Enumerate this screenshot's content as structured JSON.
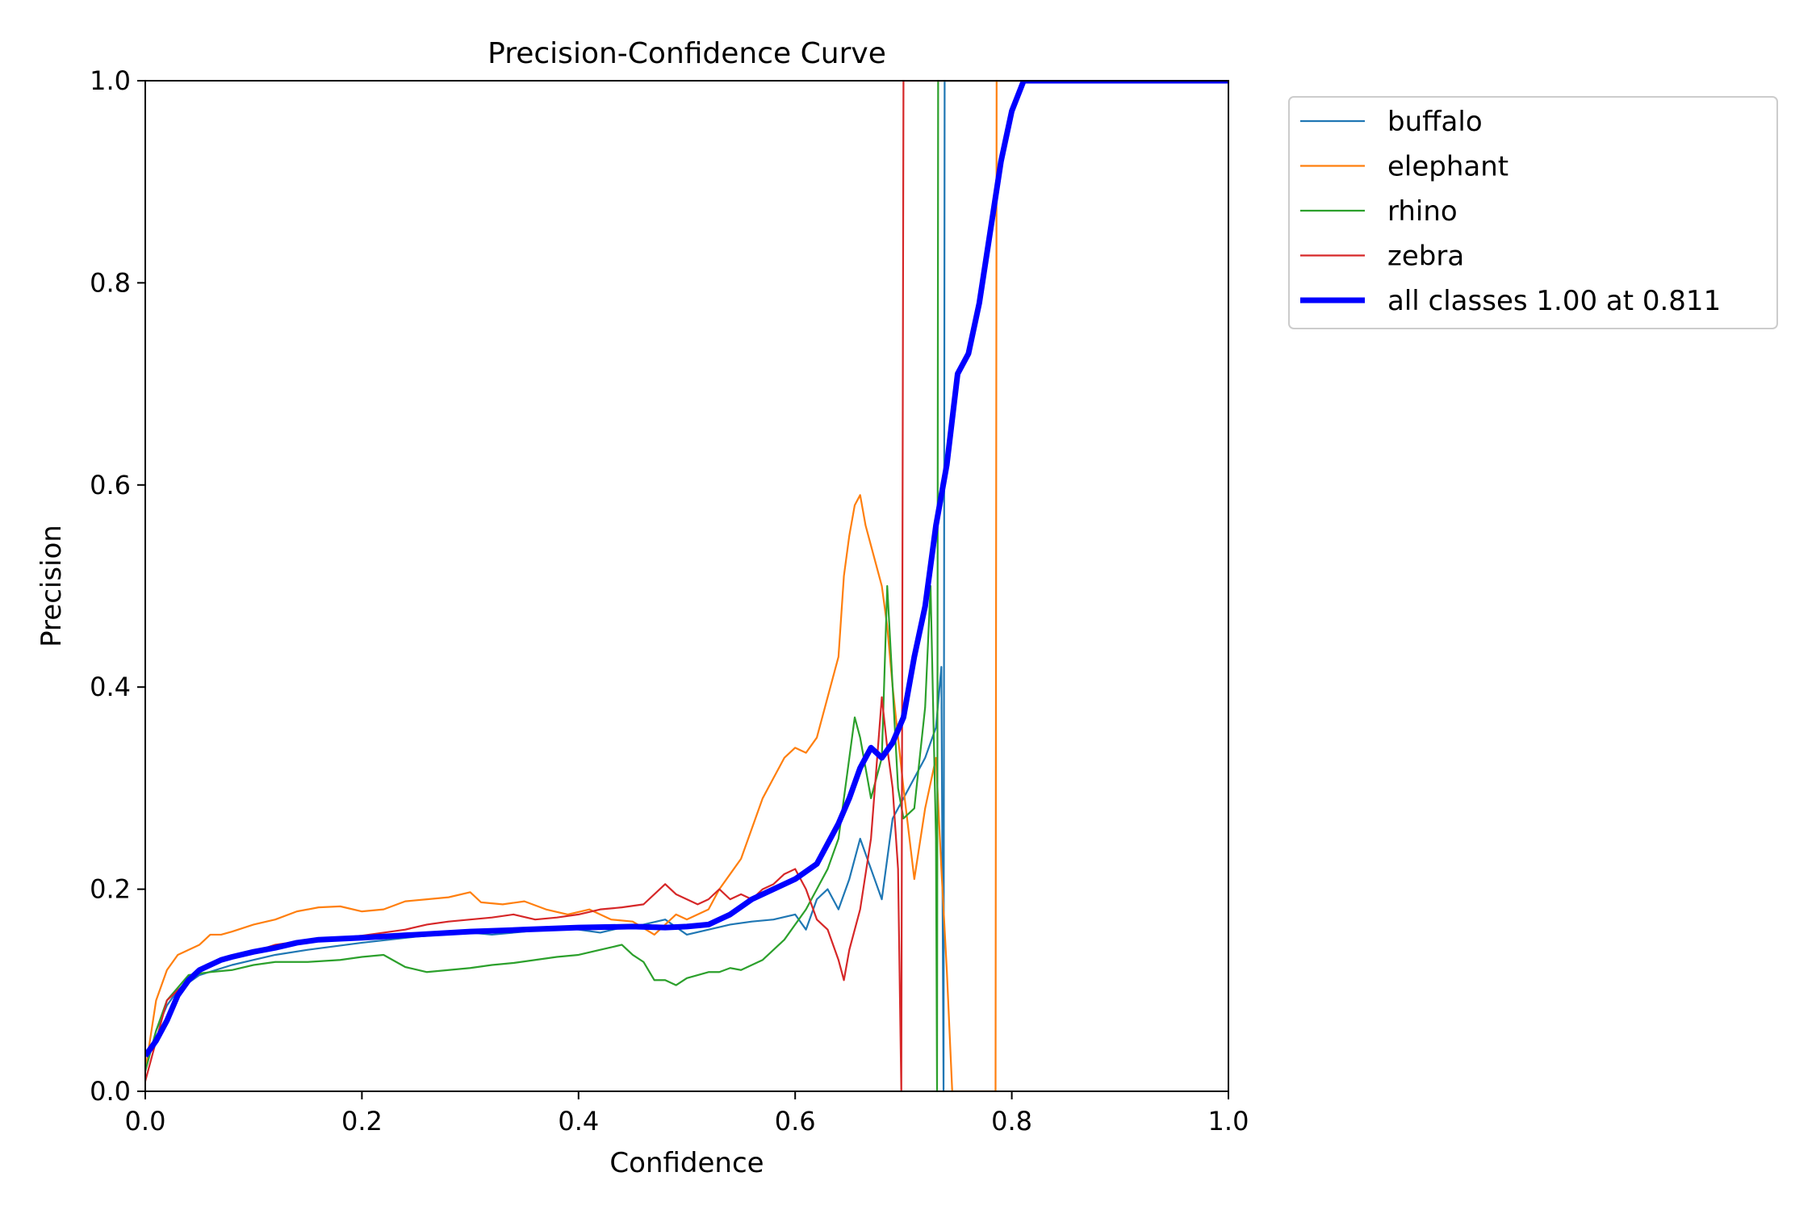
{
  "chart_data": {
    "type": "line",
    "title": "Precision-Confidence Curve",
    "xlabel": "Confidence",
    "ylabel": "Precision",
    "xlim": [
      0.0,
      1.0
    ],
    "ylim": [
      0.0,
      1.0
    ],
    "xticks": [
      0.0,
      0.2,
      0.4,
      0.6,
      0.8,
      1.0
    ],
    "yticks": [
      0.0,
      0.2,
      0.4,
      0.6,
      0.8,
      1.0
    ],
    "xtick_labels": [
      "0.0",
      "0.2",
      "0.4",
      "0.6",
      "0.8",
      "1.0"
    ],
    "ytick_labels": [
      "0.0",
      "0.2",
      "0.4",
      "0.6",
      "0.8",
      "1.0"
    ],
    "grid": false,
    "legend_placement": "outside upper-right",
    "series": [
      {
        "name": "buffalo",
        "color": "#1f77b4",
        "width": "thin",
        "points": [
          [
            0.0,
            0.02
          ],
          [
            0.01,
            0.06
          ],
          [
            0.02,
            0.085
          ],
          [
            0.03,
            0.1
          ],
          [
            0.05,
            0.115
          ],
          [
            0.08,
            0.125
          ],
          [
            0.1,
            0.13
          ],
          [
            0.12,
            0.135
          ],
          [
            0.15,
            0.14
          ],
          [
            0.2,
            0.147
          ],
          [
            0.25,
            0.153
          ],
          [
            0.3,
            0.157
          ],
          [
            0.32,
            0.155
          ],
          [
            0.35,
            0.158
          ],
          [
            0.38,
            0.162
          ],
          [
            0.4,
            0.16
          ],
          [
            0.42,
            0.157
          ],
          [
            0.44,
            0.162
          ],
          [
            0.46,
            0.165
          ],
          [
            0.48,
            0.17
          ],
          [
            0.5,
            0.155
          ],
          [
            0.52,
            0.16
          ],
          [
            0.54,
            0.165
          ],
          [
            0.56,
            0.168
          ],
          [
            0.58,
            0.17
          ],
          [
            0.6,
            0.175
          ],
          [
            0.61,
            0.16
          ],
          [
            0.62,
            0.19
          ],
          [
            0.63,
            0.2
          ],
          [
            0.64,
            0.18
          ],
          [
            0.65,
            0.21
          ],
          [
            0.66,
            0.25
          ],
          [
            0.67,
            0.22
          ],
          [
            0.68,
            0.19
          ],
          [
            0.69,
            0.27
          ],
          [
            0.7,
            0.29
          ],
          [
            0.71,
            0.31
          ],
          [
            0.72,
            0.33
          ],
          [
            0.73,
            0.36
          ],
          [
            0.735,
            0.42
          ],
          [
            0.737,
            0.0
          ],
          [
            0.738,
            1.0
          ],
          [
            1.0,
            1.0
          ]
        ]
      },
      {
        "name": "elephant",
        "color": "#ff7f0e",
        "width": "thin",
        "points": [
          [
            0.0,
            0.02
          ],
          [
            0.01,
            0.09
          ],
          [
            0.02,
            0.12
          ],
          [
            0.03,
            0.135
          ],
          [
            0.04,
            0.14
          ],
          [
            0.05,
            0.145
          ],
          [
            0.06,
            0.155
          ],
          [
            0.07,
            0.155
          ],
          [
            0.08,
            0.158
          ],
          [
            0.1,
            0.165
          ],
          [
            0.12,
            0.17
          ],
          [
            0.14,
            0.178
          ],
          [
            0.16,
            0.182
          ],
          [
            0.18,
            0.183
          ],
          [
            0.2,
            0.178
          ],
          [
            0.22,
            0.18
          ],
          [
            0.24,
            0.188
          ],
          [
            0.26,
            0.19
          ],
          [
            0.28,
            0.192
          ],
          [
            0.3,
            0.197
          ],
          [
            0.31,
            0.187
          ],
          [
            0.33,
            0.185
          ],
          [
            0.35,
            0.188
          ],
          [
            0.37,
            0.18
          ],
          [
            0.39,
            0.175
          ],
          [
            0.41,
            0.18
          ],
          [
            0.43,
            0.17
          ],
          [
            0.45,
            0.168
          ],
          [
            0.47,
            0.155
          ],
          [
            0.49,
            0.175
          ],
          [
            0.5,
            0.17
          ],
          [
            0.52,
            0.18
          ],
          [
            0.53,
            0.2
          ],
          [
            0.54,
            0.215
          ],
          [
            0.55,
            0.23
          ],
          [
            0.56,
            0.26
          ],
          [
            0.57,
            0.29
          ],
          [
            0.58,
            0.31
          ],
          [
            0.59,
            0.33
          ],
          [
            0.6,
            0.34
          ],
          [
            0.61,
            0.335
          ],
          [
            0.62,
            0.35
          ],
          [
            0.63,
            0.39
          ],
          [
            0.64,
            0.43
          ],
          [
            0.645,
            0.51
          ],
          [
            0.65,
            0.55
          ],
          [
            0.655,
            0.58
          ],
          [
            0.66,
            0.59
          ],
          [
            0.665,
            0.56
          ],
          [
            0.67,
            0.54
          ],
          [
            0.675,
            0.52
          ],
          [
            0.68,
            0.5
          ],
          [
            0.685,
            0.46
          ],
          [
            0.69,
            0.4
          ],
          [
            0.7,
            0.3
          ],
          [
            0.71,
            0.21
          ],
          [
            0.72,
            0.28
          ],
          [
            0.73,
            0.33
          ],
          [
            0.735,
            0.22
          ],
          [
            0.74,
            0.12
          ],
          [
            0.745,
            0.0
          ],
          [
            0.785,
            0.0
          ],
          [
            0.786,
            1.0
          ],
          [
            1.0,
            1.0
          ]
        ]
      },
      {
        "name": "rhino",
        "color": "#2ca02c",
        "width": "thin",
        "points": [
          [
            0.0,
            0.02
          ],
          [
            0.01,
            0.06
          ],
          [
            0.02,
            0.09
          ],
          [
            0.04,
            0.115
          ],
          [
            0.06,
            0.118
          ],
          [
            0.08,
            0.12
          ],
          [
            0.1,
            0.125
          ],
          [
            0.12,
            0.128
          ],
          [
            0.15,
            0.128
          ],
          [
            0.18,
            0.13
          ],
          [
            0.2,
            0.133
          ],
          [
            0.22,
            0.135
          ],
          [
            0.24,
            0.123
          ],
          [
            0.26,
            0.118
          ],
          [
            0.28,
            0.12
          ],
          [
            0.3,
            0.122
          ],
          [
            0.32,
            0.125
          ],
          [
            0.34,
            0.127
          ],
          [
            0.36,
            0.13
          ],
          [
            0.38,
            0.133
          ],
          [
            0.4,
            0.135
          ],
          [
            0.42,
            0.14
          ],
          [
            0.44,
            0.145
          ],
          [
            0.45,
            0.135
          ],
          [
            0.46,
            0.128
          ],
          [
            0.47,
            0.11
          ],
          [
            0.48,
            0.11
          ],
          [
            0.49,
            0.105
          ],
          [
            0.5,
            0.112
          ],
          [
            0.51,
            0.115
          ],
          [
            0.52,
            0.118
          ],
          [
            0.53,
            0.118
          ],
          [
            0.54,
            0.122
          ],
          [
            0.55,
            0.12
          ],
          [
            0.56,
            0.125
          ],
          [
            0.57,
            0.13
          ],
          [
            0.58,
            0.14
          ],
          [
            0.59,
            0.15
          ],
          [
            0.6,
            0.165
          ],
          [
            0.61,
            0.18
          ],
          [
            0.62,
            0.2
          ],
          [
            0.63,
            0.22
          ],
          [
            0.64,
            0.25
          ],
          [
            0.65,
            0.33
          ],
          [
            0.655,
            0.37
          ],
          [
            0.66,
            0.35
          ],
          [
            0.67,
            0.29
          ],
          [
            0.68,
            0.33
          ],
          [
            0.685,
            0.5
          ],
          [
            0.69,
            0.4
          ],
          [
            0.695,
            0.3
          ],
          [
            0.7,
            0.27
          ],
          [
            0.71,
            0.28
          ],
          [
            0.72,
            0.38
          ],
          [
            0.725,
            0.5
          ],
          [
            0.73,
            0.25
          ],
          [
            0.731,
            0.0
          ],
          [
            0.732,
            1.0
          ],
          [
            1.0,
            1.0
          ]
        ]
      },
      {
        "name": "zebra",
        "color": "#d62728",
        "width": "thin",
        "points": [
          [
            0.0,
            0.01
          ],
          [
            0.02,
            0.09
          ],
          [
            0.04,
            0.11
          ],
          [
            0.06,
            0.125
          ],
          [
            0.08,
            0.132
          ],
          [
            0.1,
            0.138
          ],
          [
            0.12,
            0.145
          ],
          [
            0.14,
            0.148
          ],
          [
            0.16,
            0.15
          ],
          [
            0.18,
            0.152
          ],
          [
            0.2,
            0.154
          ],
          [
            0.22,
            0.157
          ],
          [
            0.24,
            0.16
          ],
          [
            0.26,
            0.165
          ],
          [
            0.28,
            0.168
          ],
          [
            0.3,
            0.17
          ],
          [
            0.32,
            0.172
          ],
          [
            0.34,
            0.175
          ],
          [
            0.36,
            0.17
          ],
          [
            0.38,
            0.172
          ],
          [
            0.4,
            0.175
          ],
          [
            0.42,
            0.18
          ],
          [
            0.44,
            0.182
          ],
          [
            0.46,
            0.185
          ],
          [
            0.48,
            0.205
          ],
          [
            0.49,
            0.195
          ],
          [
            0.5,
            0.19
          ],
          [
            0.51,
            0.185
          ],
          [
            0.52,
            0.19
          ],
          [
            0.53,
            0.2
          ],
          [
            0.54,
            0.19
          ],
          [
            0.55,
            0.195
          ],
          [
            0.56,
            0.19
          ],
          [
            0.57,
            0.2
          ],
          [
            0.58,
            0.205
          ],
          [
            0.59,
            0.215
          ],
          [
            0.6,
            0.22
          ],
          [
            0.61,
            0.2
          ],
          [
            0.62,
            0.17
          ],
          [
            0.63,
            0.16
          ],
          [
            0.64,
            0.13
          ],
          [
            0.645,
            0.11
          ],
          [
            0.65,
            0.14
          ],
          [
            0.66,
            0.18
          ],
          [
            0.67,
            0.25
          ],
          [
            0.68,
            0.39
          ],
          [
            0.685,
            0.34
          ],
          [
            0.69,
            0.3
          ],
          [
            0.695,
            0.22
          ],
          [
            0.698,
            0.0
          ],
          [
            0.7,
            1.0
          ],
          [
            1.0,
            1.0
          ]
        ]
      },
      {
        "name": "all classes 1.00 at 0.811",
        "color": "#0000ff",
        "width": "thick",
        "points": [
          [
            0.0,
            0.035
          ],
          [
            0.01,
            0.05
          ],
          [
            0.02,
            0.07
          ],
          [
            0.03,
            0.095
          ],
          [
            0.04,
            0.11
          ],
          [
            0.05,
            0.12
          ],
          [
            0.06,
            0.125
          ],
          [
            0.07,
            0.13
          ],
          [
            0.08,
            0.133
          ],
          [
            0.1,
            0.138
          ],
          [
            0.12,
            0.142
          ],
          [
            0.14,
            0.147
          ],
          [
            0.16,
            0.15
          ],
          [
            0.2,
            0.152
          ],
          [
            0.25,
            0.155
          ],
          [
            0.3,
            0.158
          ],
          [
            0.35,
            0.16
          ],
          [
            0.4,
            0.162
          ],
          [
            0.45,
            0.163
          ],
          [
            0.48,
            0.162
          ],
          [
            0.5,
            0.163
          ],
          [
            0.52,
            0.165
          ],
          [
            0.54,
            0.175
          ],
          [
            0.56,
            0.19
          ],
          [
            0.58,
            0.2
          ],
          [
            0.6,
            0.21
          ],
          [
            0.62,
            0.225
          ],
          [
            0.64,
            0.265
          ],
          [
            0.65,
            0.29
          ],
          [
            0.66,
            0.32
          ],
          [
            0.67,
            0.34
          ],
          [
            0.68,
            0.33
          ],
          [
            0.69,
            0.345
          ],
          [
            0.7,
            0.37
          ],
          [
            0.71,
            0.43
          ],
          [
            0.72,
            0.48
          ],
          [
            0.73,
            0.56
          ],
          [
            0.74,
            0.62
          ],
          [
            0.75,
            0.71
          ],
          [
            0.76,
            0.73
          ],
          [
            0.77,
            0.78
          ],
          [
            0.78,
            0.85
          ],
          [
            0.79,
            0.92
          ],
          [
            0.8,
            0.97
          ],
          [
            0.811,
            1.0
          ],
          [
            1.0,
            1.0
          ]
        ]
      }
    ]
  }
}
